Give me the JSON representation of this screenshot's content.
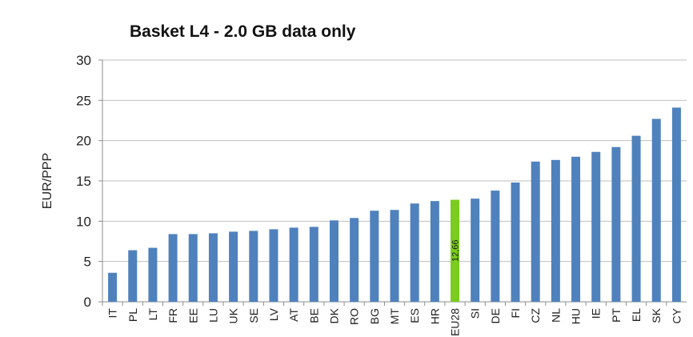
{
  "chart_data": {
    "type": "bar",
    "title": "Basket L4 - 2.0 GB data only",
    "xlabel": "",
    "ylabel": "EUR/PPP",
    "ylim": [
      0,
      30
    ],
    "yticks": [
      0,
      5,
      10,
      15,
      20,
      25,
      30
    ],
    "grid": true,
    "legend": "none",
    "colors": {
      "bar": "#4f81bd",
      "highlight": "#7acc1e",
      "grid": "#bfbfbf",
      "axis": "#8c8c8c"
    },
    "categories": [
      "IT",
      "PL",
      "LT",
      "FR",
      "EE",
      "LU",
      "UK",
      "SE",
      "LV",
      "AT",
      "BE",
      "DK",
      "RO",
      "BG",
      "MT",
      "ES",
      "HR",
      "EU28",
      "SI",
      "DE",
      "FI",
      "CZ",
      "NL",
      "HU",
      "IE",
      "PT",
      "EL",
      "SK",
      "CY"
    ],
    "values": [
      3.6,
      6.4,
      6.7,
      8.4,
      8.4,
      8.5,
      8.7,
      8.8,
      9.0,
      9.2,
      9.3,
      10.1,
      10.4,
      11.3,
      11.4,
      12.2,
      12.5,
      12.66,
      12.8,
      13.8,
      14.8,
      17.4,
      17.6,
      18.0,
      18.6,
      19.2,
      20.6,
      22.7,
      24.1
    ],
    "highlight_category": "EU28",
    "data_labels": [
      {
        "category": "EU28",
        "text": "12,66"
      }
    ]
  }
}
